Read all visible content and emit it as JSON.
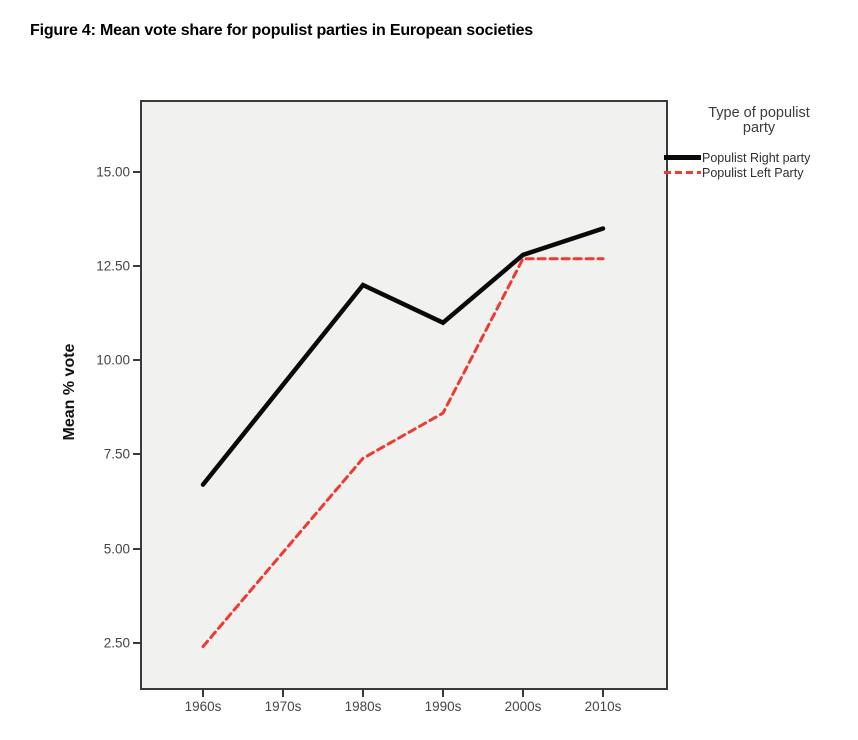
{
  "figure": {
    "title": "Figure 4: Mean vote share for populist parties in European societies"
  },
  "chart_data": {
    "type": "line",
    "title": "Figure 4: Mean vote share for populist parties in European societies",
    "xlabel": "",
    "ylabel": "Mean % vote",
    "categories": [
      "1960s",
      "1970s",
      "1980s",
      "1990s",
      "2000s",
      "2010s"
    ],
    "y_tick_labels": [
      "15.00",
      "12.50",
      "10.00",
      "7.50",
      "5.00",
      "2.50"
    ],
    "y_tick_values": [
      15.0,
      12.5,
      10.0,
      7.5,
      5.0,
      2.5
    ],
    "ylim": [
      1.3,
      16.86
    ],
    "grid": false,
    "legend_position": "right",
    "plot_background": "#f1f1ef",
    "series": [
      {
        "name": "Populist Right party",
        "values": [
          6.7,
          9.35,
          12.0,
          11.0,
          12.8,
          13.5
        ],
        "color": "#0a0a0a",
        "style": "solid",
        "stroke_width": 4.5
      },
      {
        "name": "Populist Left Party",
        "values": [
          2.4,
          4.9,
          7.4,
          8.6,
          12.7,
          12.7
        ],
        "color": "#ee3a33",
        "style": "dashed",
        "stroke_width": 3,
        "dash": [
          7,
          5
        ]
      }
    ]
  },
  "legend": {
    "title": "Type of populist party",
    "entries": [
      {
        "label": "Populist Right party"
      },
      {
        "label": "Populist Left Party"
      }
    ]
  },
  "colors": {
    "plot_background": "#f1f1ef",
    "plot_border": "#3a3a3a",
    "tick_label": "#454545",
    "populist_right": "#0a0a0a",
    "populist_left": "#ee3a33"
  }
}
